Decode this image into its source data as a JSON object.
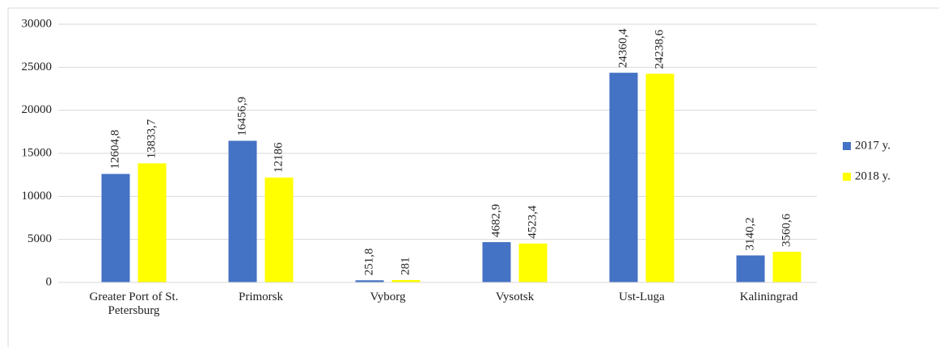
{
  "chart_data": {
    "type": "bar",
    "categories": [
      "Greater Port of St. Petersburg",
      "Primorsk",
      "Vyborg",
      "Vysotsk",
      "Ust-Luga",
      "Kaliningrad"
    ],
    "series": [
      {
        "name": "2017 y.",
        "color": "#4472c4",
        "values": [
          12604.8,
          16456.9,
          251.8,
          4682.9,
          24360.4,
          3140.2
        ],
        "value_labels": [
          "12604,8",
          "16456,9",
          "251,8",
          "4682,9",
          "24360,4",
          "3140,2"
        ]
      },
      {
        "name": "2018 y.",
        "color": "#ffff00",
        "values": [
          13833.7,
          12186,
          281,
          4523.4,
          24238.6,
          3560.6
        ],
        "value_labels": [
          "13833,7",
          "12186",
          "281",
          "4523,4",
          "24238,6",
          "3560,6"
        ]
      }
    ],
    "ylim": [
      0,
      30000
    ],
    "yticks": [
      0,
      5000,
      10000,
      15000,
      20000,
      25000,
      30000
    ],
    "grid": true,
    "legend": "right"
  }
}
